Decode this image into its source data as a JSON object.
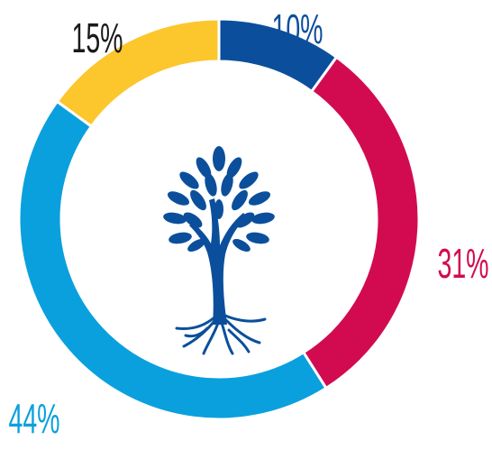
{
  "chart_data": {
    "type": "donut",
    "values": [
      10,
      31,
      44,
      15
    ],
    "value_labels": [
      "10%",
      "31%",
      "44%",
      "15%"
    ],
    "colors": [
      "#0b4f9c",
      "#d20b51",
      "#0aa0dd",
      "#fcc62d"
    ],
    "label_colors": [
      "#0b4f9c",
      "#d20b51",
      "#0aa0dd",
      "#1a1a1a"
    ]
  }
}
